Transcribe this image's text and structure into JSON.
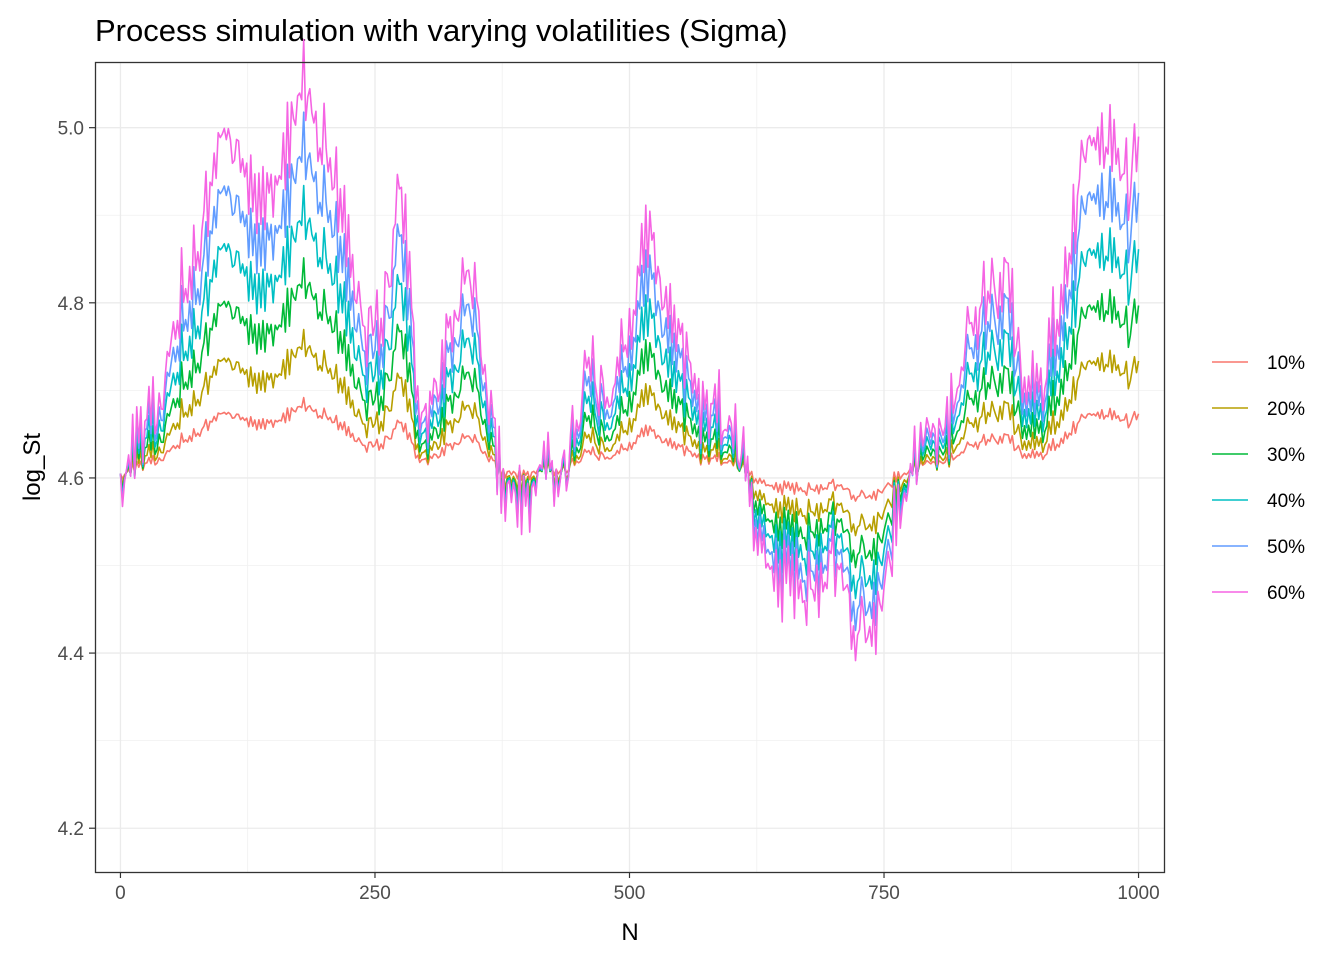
{
  "chart_data": {
    "type": "line",
    "title": "Process simulation with varying volatilities (Sigma)",
    "xlabel": "N",
    "ylabel": "log_St",
    "xlim": [
      -25,
      1025
    ],
    "ylim": [
      4.15,
      5.075
    ],
    "x_ticks": [
      0,
      250,
      500,
      750,
      1000
    ],
    "x_tick_labels": [
      "0",
      "250",
      "500",
      "750",
      "1000"
    ],
    "y_ticks": [
      4.2,
      4.4,
      4.6,
      4.8,
      5.0
    ],
    "y_tick_labels": [
      "4.2",
      "4.4",
      "4.6",
      "4.8",
      "5.0"
    ],
    "grid": true,
    "legend_position": "right",
    "base_value": 4.6052,
    "base_sigma": 0.1,
    "x": [
      0,
      15,
      40,
      60,
      80,
      100,
      120,
      140,
      165,
      180,
      195,
      215,
      240,
      260,
      275,
      290,
      300,
      325,
      345,
      360,
      375,
      400,
      420,
      440,
      460,
      480,
      500,
      510,
      520,
      530,
      545,
      565,
      580,
      600,
      625,
      650,
      675,
      700,
      725,
      745,
      760,
      790,
      810,
      825,
      850,
      870,
      890,
      905,
      930,
      950,
      970,
      990,
      1000
    ],
    "series": [
      {
        "name": "10%",
        "color": "#F8766D",
        "values": [
          4.605,
          4.612,
          4.621,
          4.644,
          4.655,
          4.673,
          4.668,
          4.661,
          4.673,
          4.684,
          4.675,
          4.662,
          4.636,
          4.641,
          4.667,
          4.63,
          4.615,
          4.636,
          4.648,
          4.624,
          4.608,
          4.604,
          4.609,
          4.612,
          4.628,
          4.623,
          4.638,
          4.647,
          4.657,
          4.644,
          4.641,
          4.624,
          4.621,
          4.62,
          4.599,
          4.589,
          4.587,
          4.594,
          4.578,
          4.583,
          4.6,
          4.618,
          4.615,
          4.63,
          4.643,
          4.646,
          4.627,
          4.625,
          4.652,
          4.67,
          4.674,
          4.664,
          4.672
        ]
      },
      {
        "name": "20%",
        "color": "#B79F00",
        "values": [
          4.605,
          4.617,
          4.631,
          4.676,
          4.697,
          4.733,
          4.723,
          4.709,
          4.733,
          4.754,
          4.736,
          4.711,
          4.659,
          4.669,
          4.722,
          4.647,
          4.617,
          4.659,
          4.683,
          4.635,
          4.603,
          4.595,
          4.605,
          4.611,
          4.643,
          4.633,
          4.663,
          4.681,
          4.701,
          4.675,
          4.669,
          4.635,
          4.629,
          4.627,
          4.585,
          4.565,
          4.561,
          4.575,
          4.543,
          4.553,
          4.587,
          4.623,
          4.617,
          4.647,
          4.673,
          4.679,
          4.641,
          4.637,
          4.691,
          4.727,
          4.735,
          4.715,
          4.731
        ]
      },
      {
        "name": "30%",
        "color": "#00BA38",
        "values": [
          4.605,
          4.622,
          4.644,
          4.711,
          4.742,
          4.796,
          4.781,
          4.76,
          4.796,
          4.828,
          4.801,
          4.763,
          4.685,
          4.7,
          4.779,
          4.667,
          4.621,
          4.685,
          4.721,
          4.649,
          4.601,
          4.589,
          4.604,
          4.613,
          4.661,
          4.646,
          4.691,
          4.718,
          4.748,
          4.709,
          4.7,
          4.649,
          4.64,
          4.637,
          4.574,
          4.544,
          4.538,
          4.559,
          4.511,
          4.526,
          4.577,
          4.631,
          4.622,
          4.667,
          4.706,
          4.715,
          4.658,
          4.652,
          4.733,
          4.787,
          4.799,
          4.769,
          4.793
        ]
      },
      {
        "name": "40%",
        "color": "#00BFC4",
        "values": [
          4.605,
          4.628,
          4.658,
          4.747,
          4.788,
          4.86,
          4.84,
          4.812,
          4.86,
          4.903,
          4.867,
          4.816,
          4.712,
          4.732,
          4.837,
          4.688,
          4.627,
          4.712,
          4.76,
          4.664,
          4.6,
          4.584,
          4.604,
          4.616,
          4.68,
          4.66,
          4.72,
          4.756,
          4.796,
          4.744,
          4.732,
          4.664,
          4.652,
          4.648,
          4.564,
          4.524,
          4.516,
          4.544,
          4.48,
          4.5,
          4.568,
          4.64,
          4.628,
          4.688,
          4.74,
          4.752,
          4.676,
          4.668,
          4.776,
          4.848,
          4.864,
          4.824,
          4.856
        ]
      },
      {
        "name": "50%",
        "color": "#619CFF",
        "values": [
          4.605,
          4.634,
          4.671,
          4.784,
          4.834,
          4.924,
          4.899,
          4.864,
          4.924,
          4.979,
          4.934,
          4.869,
          4.739,
          4.764,
          4.896,
          4.709,
          4.633,
          4.739,
          4.799,
          4.679,
          4.598,
          4.578,
          4.603,
          4.619,
          4.699,
          4.674,
          4.749,
          4.794,
          4.844,
          4.779,
          4.764,
          4.679,
          4.664,
          4.659,
          4.553,
          4.503,
          4.493,
          4.528,
          4.448,
          4.473,
          4.558,
          4.648,
          4.633,
          4.709,
          4.774,
          4.789,
          4.694,
          4.684,
          4.819,
          4.909,
          4.929,
          4.879,
          4.919
        ]
      },
      {
        "name": "60%",
        "color": "#F564E3",
        "values": [
          4.605,
          4.64,
          4.685,
          4.82,
          4.88,
          4.988,
          4.958,
          4.916,
          4.988,
          5.054,
          5.0,
          4.922,
          4.766,
          4.796,
          4.954,
          4.73,
          4.64,
          4.766,
          4.838,
          4.694,
          4.598,
          4.574,
          4.604,
          4.622,
          4.718,
          4.688,
          4.778,
          4.832,
          4.892,
          4.814,
          4.796,
          4.694,
          4.676,
          4.67,
          4.544,
          4.484,
          4.472,
          4.514,
          4.418,
          4.448,
          4.55,
          4.658,
          4.64,
          4.73,
          4.808,
          4.826,
          4.712,
          4.7,
          4.862,
          4.97,
          4.994,
          4.934,
          4.982
        ]
      }
    ]
  }
}
